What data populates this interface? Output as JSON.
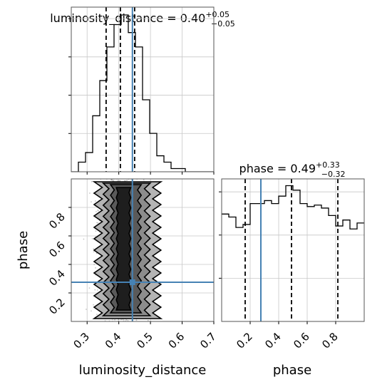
{
  "chart_data": {
    "type": "corner",
    "colors": {
      "truth": "#4682b4",
      "histogram": "#000000",
      "grid": "#c8c8c8",
      "samples": "#7f7f7f",
      "density": [
        "#ffffff",
        "#dcdcdc",
        "#b4b4b4",
        "#8c8c8c",
        "#5a5a5a",
        "#1e1e1e"
      ]
    },
    "parameters": [
      {
        "key": "luminosity_distance",
        "label": "luminosity_distance",
        "title": {
          "prefix": "luminosity_distance = ",
          "value": "0.40",
          "plus": "+0.05",
          "minus": "−0.05"
        },
        "range": [
          0.25,
          0.7
        ],
        "ticks": [
          0.3,
          0.4,
          0.5,
          0.6,
          0.7
        ],
        "tick_labels": [
          "0.3",
          "0.4",
          "0.5",
          "0.6",
          "0.7"
        ],
        "quantiles": [
          0.36,
          0.405,
          0.45
        ],
        "truth": 0.443,
        "hist_edges": [
          0.25,
          0.2725,
          0.295,
          0.3175,
          0.34,
          0.3625,
          0.385,
          0.4075,
          0.43,
          0.4525,
          0.475,
          0.4975,
          0.52,
          0.5425,
          0.565,
          0.5875,
          0.61,
          0.6325,
          0.655,
          0.6775,
          0.7
        ],
        "hist_counts": [
          0,
          6,
          12,
          35,
          57,
          78,
          92,
          98,
          87,
          78,
          45,
          24,
          10,
          6,
          2,
          2,
          0,
          0,
          0,
          0
        ]
      },
      {
        "key": "phase",
        "label": "phase",
        "title": {
          "prefix": "phase = ",
          "value": "0.49",
          "plus": "+0.33",
          "minus": "−0.32"
        },
        "range": [
          0.0,
          1.0
        ],
        "ticks": [
          0.2,
          0.4,
          0.6,
          0.8
        ],
        "tick_labels": [
          "0.2",
          "0.4",
          "0.6",
          "0.8"
        ],
        "quantiles": [
          0.165,
          0.49,
          0.815
        ],
        "truth": 0.275,
        "hist_edges": [
          0.0,
          0.05,
          0.1,
          0.15,
          0.2,
          0.25,
          0.3,
          0.35,
          0.4,
          0.45,
          0.5,
          0.55,
          0.6,
          0.65,
          0.7,
          0.75,
          0.8,
          0.85,
          0.9,
          0.95,
          1.0
        ],
        "hist_counts": [
          72,
          70,
          63,
          65,
          79,
          79,
          81,
          79,
          84,
          91,
          88,
          79,
          77,
          78,
          76,
          71,
          64,
          68,
          62,
          66
        ]
      }
    ],
    "joint": {
      "x": "luminosity_distance",
      "y": "phase",
      "truth": [
        0.443,
        0.275
      ],
      "density_levels": [
        0.2,
        0.4,
        0.6,
        0.8
      ],
      "contours": [
        {
          "level": 1,
          "x": [
            0.335,
            0.52
          ],
          "y": [
            0.02,
            0.98
          ]
        },
        {
          "level": 2,
          "x": [
            0.36,
            0.49
          ],
          "y": [
            0.04,
            0.97
          ]
        },
        {
          "level": 3,
          "x": [
            0.38,
            0.465
          ],
          "y": [
            0.06,
            0.96
          ]
        },
        {
          "level": 4,
          "x": [
            0.395,
            0.435
          ],
          "y": [
            0.08,
            0.94
          ]
        }
      ]
    }
  }
}
